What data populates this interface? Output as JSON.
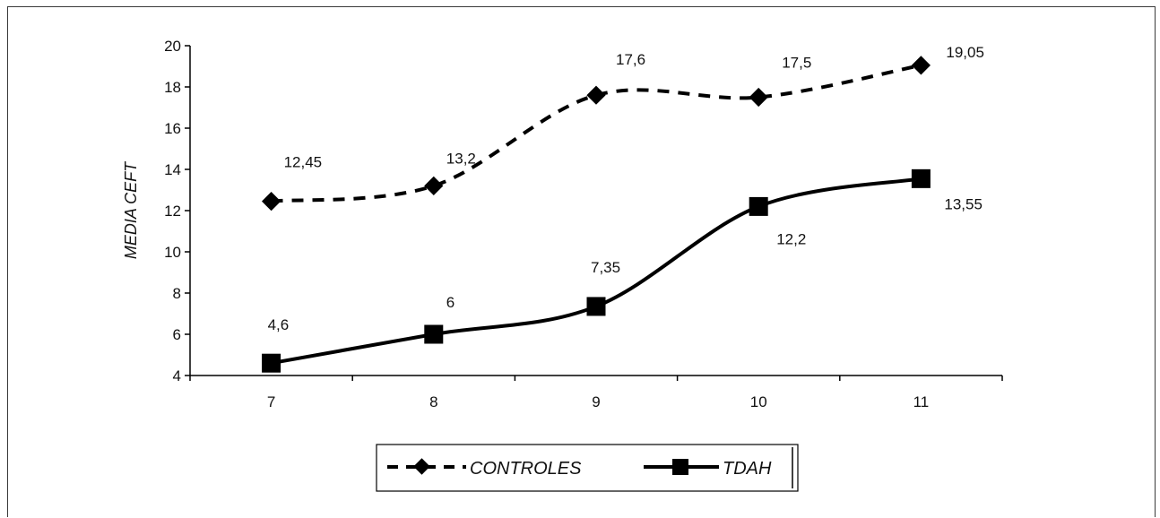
{
  "chart_data": {
    "type": "line",
    "x": [
      7,
      8,
      9,
      10,
      11
    ],
    "ylabel": "MEDIA CEFT",
    "ylim": [
      4,
      20
    ],
    "yticks": [
      4,
      6,
      8,
      10,
      12,
      14,
      16,
      18,
      20
    ],
    "grid": false,
    "legend_position": "bottom",
    "series": [
      {
        "name": "CONTROLES",
        "values": [
          12.45,
          13.2,
          17.6,
          17.5,
          19.05
        ],
        "labels": [
          "12,45",
          "13,2",
          "17,6",
          "17,5",
          "19,05"
        ],
        "line_style": "dashed",
        "marker": "diamond",
        "color": "#000000"
      },
      {
        "name": "TDAH",
        "values": [
          4.6,
          6,
          7.35,
          12.2,
          13.55
        ],
        "labels": [
          "4,6",
          "6",
          "7,35",
          "12,2",
          "13,55"
        ],
        "line_style": "solid",
        "marker": "square",
        "color": "#000000"
      }
    ]
  }
}
